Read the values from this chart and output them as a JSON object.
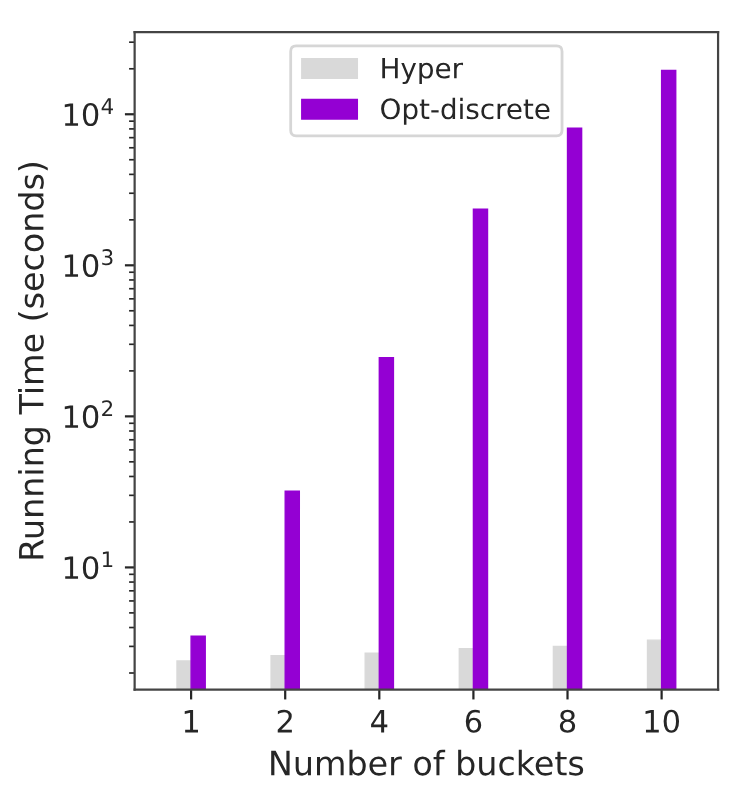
{
  "chart_data": {
    "type": "bar",
    "xlabel": "Number of buckets",
    "ylabel": "Running Time (seconds)",
    "categories": [
      "1",
      "2",
      "4",
      "6",
      "8",
      "10"
    ],
    "series": [
      {
        "name": "Hyper",
        "color": "#d9d9d9",
        "values": [
          2.4,
          2.6,
          2.7,
          2.9,
          3.0,
          3.3
        ]
      },
      {
        "name": "Opt-discrete",
        "color": "#9400d3",
        "values": [
          3.5,
          32,
          245,
          2350,
          8100,
          19500
        ]
      }
    ],
    "log": "y",
    "ylim": [
      1.55,
      35000
    ],
    "yticks": [
      {
        "value": 10,
        "label": "10$^{1}$"
      },
      {
        "value": 100,
        "label": "10$^{2}$"
      },
      {
        "value": 1000,
        "label": "10$^{3}$"
      },
      {
        "value": 10000,
        "label": "10$^{4}$"
      }
    ],
    "legend": "top center",
    "grid": false
  }
}
